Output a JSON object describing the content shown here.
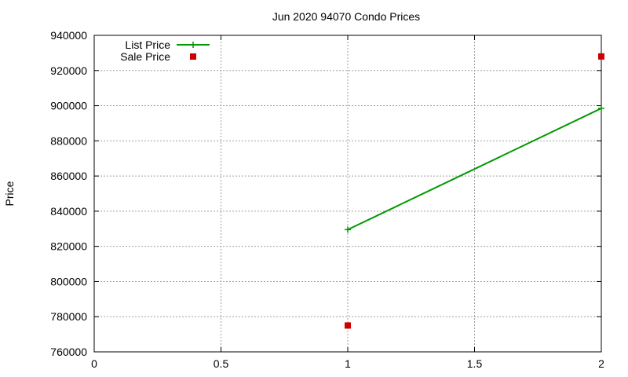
{
  "chart_data": {
    "type": "line",
    "title": "Jun 2020 94070 Condo Prices",
    "xlabel": "",
    "ylabel": "Price",
    "xlim": [
      0,
      2
    ],
    "ylim": [
      760000,
      940000
    ],
    "x_ticks": [
      "0",
      "0.5",
      "1",
      "1.5",
      "2"
    ],
    "y_ticks": [
      "760000",
      "780000",
      "800000",
      "820000",
      "840000",
      "860000",
      "880000",
      "900000",
      "920000",
      "940000"
    ],
    "grid": true,
    "legend_position": "top-left",
    "series": [
      {
        "name": "List Price",
        "style": "lines+points",
        "marker": "plus",
        "color": "#009900",
        "points": [
          [
            1,
            829500
          ],
          [
            2,
            898500
          ]
        ]
      },
      {
        "name": "Sale Price",
        "style": "points",
        "marker": "square",
        "color": "#cc0000",
        "points": [
          [
            1,
            775000
          ],
          [
            2,
            928000
          ]
        ]
      }
    ]
  }
}
